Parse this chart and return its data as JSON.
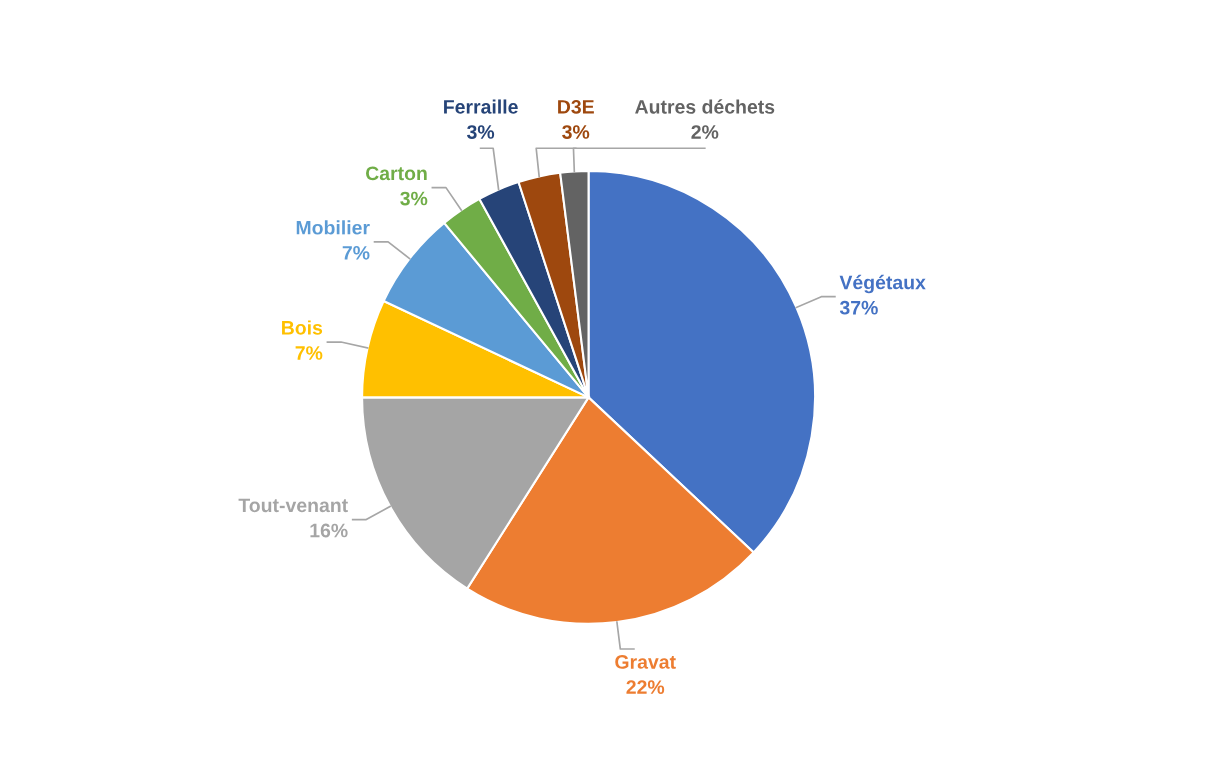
{
  "chart_data": {
    "type": "pie",
    "categories": [
      "Végétaux",
      "Gravat",
      "Tout-venant",
      "Bois",
      "Mobilier",
      "Carton",
      "Ferraille",
      "D3E",
      "Autres déchets"
    ],
    "values": [
      37,
      22,
      16,
      7,
      7,
      3,
      3,
      3,
      2
    ],
    "value_labels": [
      "37%",
      "22%",
      "16%",
      "7%",
      "7%",
      "3%",
      "3%",
      "3%",
      "2%"
    ],
    "colors": [
      "#4472c4",
      "#ed7d31",
      "#a5a5a5",
      "#ffc000",
      "#5b9bd5",
      "#70ad47",
      "#264478",
      "#9e480e",
      "#636363"
    ],
    "legend": false
  }
}
